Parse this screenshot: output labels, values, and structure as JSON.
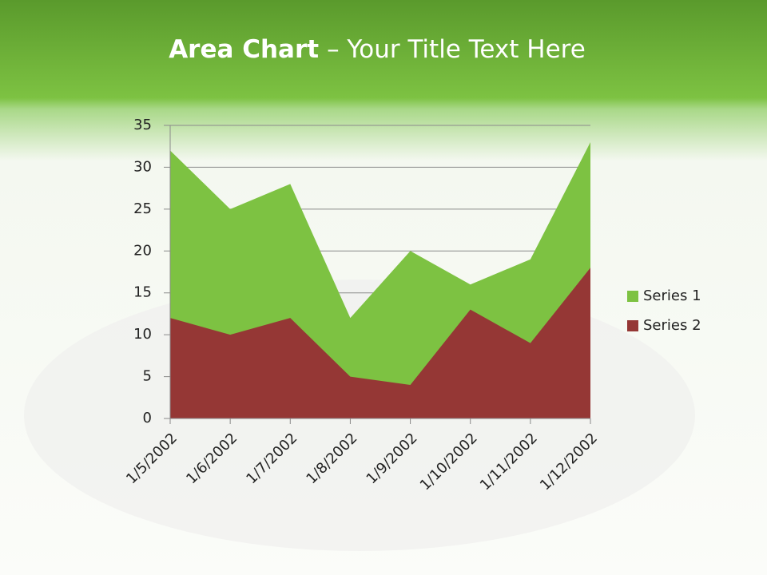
{
  "chart_data": {
    "type": "area",
    "title": "Area Chart",
    "title_suffix": "– Your Title Text Here",
    "categories": [
      "1/5/2002",
      "1/6/2002",
      "1/7/2002",
      "1/8/2002",
      "1/9/2002",
      "1/10/2002",
      "1/11/2002",
      "1/12/2002"
    ],
    "series": [
      {
        "name": "Series 1",
        "color": "#7dc242",
        "values": [
          32,
          25,
          28,
          12,
          20,
          16,
          19,
          33
        ]
      },
      {
        "name": "Series 2",
        "color": "#953735",
        "values": [
          12,
          10,
          12,
          5,
          4,
          13,
          9,
          18
        ]
      }
    ],
    "ylim": [
      0,
      35
    ],
    "yticks": [
      0,
      5,
      10,
      15,
      20,
      25,
      30,
      35
    ],
    "grid": true,
    "legend": "right"
  }
}
